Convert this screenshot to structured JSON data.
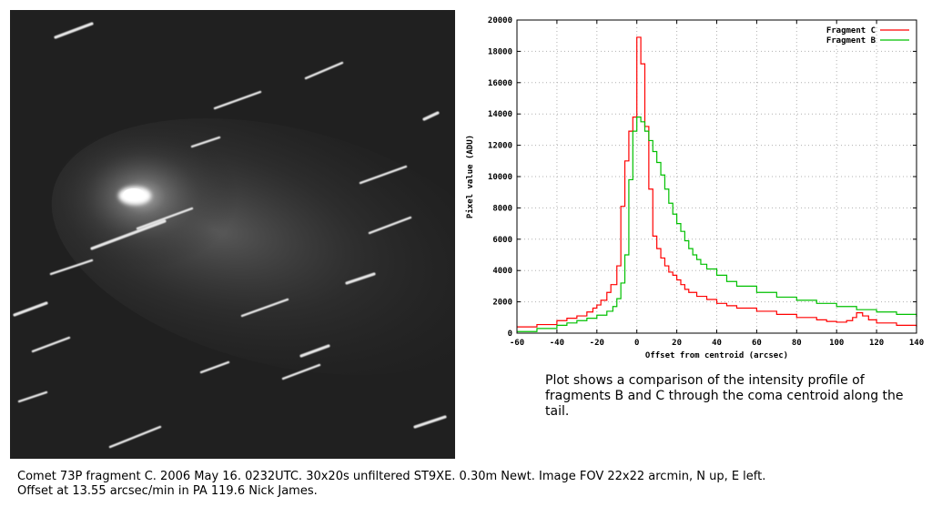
{
  "photo": {
    "caption_line1": "Comet 73P fragment C. 2006 May 16. 0232UTC. 30x20s unfiltered ST9XE. 0.30m Newt. Image FOV 22x22 arcmin, N up, E left.",
    "caption_line2": "Offset at 13.55 arcsec/min in PA 119.6   Nick James."
  },
  "plot_caption": "Plot shows a comparison of the intensity profile of fragments B and C through the coma centroid along the tail.",
  "chart_data": {
    "type": "line",
    "step": true,
    "xlabel": "Offset from centroid (arcsec)",
    "ylabel": "Pixel value (ADU)",
    "xlim": [
      -60,
      140
    ],
    "ylim": [
      0,
      20000
    ],
    "xticks": [
      -60,
      -40,
      -20,
      0,
      20,
      40,
      60,
      80,
      100,
      120,
      140
    ],
    "yticks": [
      0,
      2000,
      4000,
      6000,
      8000,
      10000,
      12000,
      14000,
      16000,
      18000,
      20000
    ],
    "grid": true,
    "legend_position": "top-right",
    "series": [
      {
        "name": "Fragment C",
        "color": "#ff0000",
        "x": [
          -60,
          -50,
          -40,
          -35,
          -30,
          -25,
          -22,
          -20,
          -18,
          -15,
          -13,
          -10,
          -8,
          -6,
          -4,
          -2,
          0,
          2,
          4,
          6,
          8,
          10,
          12,
          14,
          16,
          18,
          20,
          22,
          24,
          26,
          30,
          35,
          40,
          45,
          50,
          60,
          70,
          80,
          90,
          95,
          100,
          105,
          108,
          110,
          113,
          116,
          120,
          130,
          140
        ],
        "y": [
          400,
          550,
          800,
          950,
          1100,
          1350,
          1600,
          1800,
          2100,
          2600,
          3100,
          4300,
          8100,
          11000,
          12900,
          13800,
          18900,
          17200,
          13200,
          9200,
          6200,
          5400,
          4800,
          4300,
          3900,
          3700,
          3400,
          3100,
          2800,
          2600,
          2350,
          2150,
          1900,
          1750,
          1600,
          1400,
          1200,
          1000,
          850,
          750,
          700,
          800,
          1000,
          1300,
          1100,
          850,
          650,
          500,
          400
        ]
      },
      {
        "name": "Fragment B",
        "color": "#00c000",
        "x": [
          -60,
          -50,
          -40,
          -35,
          -30,
          -25,
          -20,
          -15,
          -12,
          -10,
          -8,
          -6,
          -4,
          -2,
          0,
          2,
          4,
          6,
          8,
          10,
          12,
          14,
          16,
          18,
          20,
          22,
          24,
          26,
          28,
          30,
          32,
          35,
          40,
          45,
          50,
          60,
          70,
          80,
          90,
          100,
          110,
          120,
          130,
          140
        ],
        "y": [
          100,
          300,
          500,
          650,
          800,
          950,
          1150,
          1400,
          1700,
          2200,
          3200,
          5000,
          9800,
          12900,
          13800,
          13500,
          12900,
          12300,
          11600,
          10900,
          10100,
          9200,
          8300,
          7600,
          7000,
          6500,
          5900,
          5400,
          5000,
          4700,
          4400,
          4100,
          3700,
          3300,
          3000,
          2600,
          2300,
          2100,
          1900,
          1700,
          1500,
          1350,
          1200,
          1050
        ]
      }
    ]
  }
}
